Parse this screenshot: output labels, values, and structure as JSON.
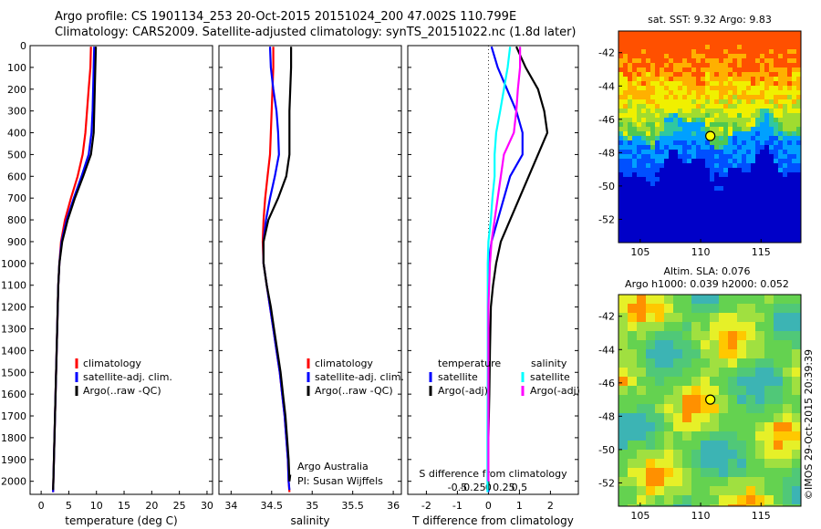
{
  "header": {
    "line1": "Argo profile: CS 1901134_253 20-Oct-2015 20151024_200 47.002S 110.799E",
    "line2": "Climatology: CARS2009. Satellite-adjusted climatology: synTS_20151022.nc (1.8d later)"
  },
  "stamp": "©IMOS 29-Oct-2015 20:39:39",
  "chart_data": [
    {
      "type": "line",
      "id": "temperature",
      "xlabel": "temperature (deg C)",
      "xlim": [
        -2,
        31
      ],
      "xticks": [
        "0",
        "5",
        "10",
        "15",
        "20",
        "25",
        "30"
      ],
      "xtick_values": [
        0,
        5,
        10,
        15,
        20,
        25,
        30
      ],
      "ylim": [
        0,
        2060
      ],
      "ytick_values": [
        0,
        100,
        200,
        300,
        400,
        500,
        600,
        700,
        800,
        900,
        1000,
        1100,
        1200,
        1300,
        1400,
        1500,
        1600,
        1700,
        1800,
        1900,
        2000
      ],
      "legend": [
        "climatology",
        "satellite-adj. clim.",
        "Argo(..raw -QC)"
      ],
      "series": [
        {
          "name": "climatology",
          "color": "#ff0000",
          "points": [
            [
              9.0,
              5
            ],
            [
              8.9,
              100
            ],
            [
              8.6,
              200
            ],
            [
              8.3,
              300
            ],
            [
              8.0,
              400
            ],
            [
              7.5,
              500
            ],
            [
              6.6,
              600
            ],
            [
              5.4,
              700
            ],
            [
              4.3,
              800
            ],
            [
              3.6,
              900
            ],
            [
              3.3,
              1000
            ],
            [
              3.1,
              1100
            ],
            [
              3.0,
              1200
            ],
            [
              2.9,
              1300
            ],
            [
              2.8,
              1400
            ],
            [
              2.7,
              1500
            ],
            [
              2.6,
              1600
            ],
            [
              2.5,
              1700
            ],
            [
              2.4,
              1800
            ],
            [
              2.3,
              1900
            ],
            [
              2.2,
              2000
            ],
            [
              2.15,
              2050
            ]
          ]
        },
        {
          "name": "satellite-adj. clim.",
          "color": "#0000ff",
          "points": [
            [
              9.6,
              5
            ],
            [
              9.5,
              100
            ],
            [
              9.4,
              200
            ],
            [
              9.3,
              300
            ],
            [
              9.1,
              400
            ],
            [
              8.6,
              500
            ],
            [
              7.3,
              600
            ],
            [
              5.9,
              700
            ],
            [
              4.6,
              800
            ],
            [
              3.7,
              900
            ],
            [
              3.3,
              1000
            ],
            [
              3.1,
              1100
            ],
            [
              3.0,
              1200
            ],
            [
              2.9,
              1300
            ],
            [
              2.8,
              1400
            ],
            [
              2.7,
              1500
            ],
            [
              2.6,
              1600
            ],
            [
              2.5,
              1700
            ],
            [
              2.4,
              1800
            ],
            [
              2.3,
              1900
            ],
            [
              2.2,
              2000
            ],
            [
              2.15,
              2050
            ]
          ]
        },
        {
          "name": "Argo(..raw -QC)",
          "color": "#000000",
          "points": [
            [
              9.9,
              5
            ],
            [
              9.8,
              100
            ],
            [
              9.7,
              200
            ],
            [
              9.6,
              300
            ],
            [
              9.5,
              400
            ],
            [
              9.0,
              500
            ],
            [
              7.6,
              600
            ],
            [
              6.1,
              700
            ],
            [
              4.8,
              800
            ],
            [
              3.8,
              900
            ],
            [
              3.3,
              1000
            ],
            [
              3.1,
              1100
            ],
            [
              3.0,
              1200
            ],
            [
              2.9,
              1300
            ],
            [
              2.8,
              1400
            ],
            [
              2.7,
              1500
            ],
            [
              2.6,
              1600
            ],
            [
              2.5,
              1700
            ],
            [
              2.4,
              1800
            ],
            [
              2.3,
              1900
            ],
            [
              2.2,
              2000
            ],
            [
              2.15,
              2040
            ]
          ]
        }
      ]
    },
    {
      "type": "line",
      "id": "salinity",
      "xlabel": "salinity",
      "xlim": [
        33.85,
        36.1
      ],
      "xticks": [
        "34",
        "34.5",
        "35",
        "35.5",
        "36"
      ],
      "xtick_values": [
        34,
        34.5,
        35,
        35.5,
        36
      ],
      "legend": [
        "climatology",
        "satellite-adj. clim.",
        "Argo(..raw -QC)"
      ],
      "annotations": [
        "Argo Australia",
        "PI: Susan Wijffels"
      ],
      "series": [
        {
          "name": "climatology",
          "color": "#ff0000",
          "points": [
            [
              34.52,
              5
            ],
            [
              34.52,
              100
            ],
            [
              34.51,
              200
            ],
            [
              34.5,
              300
            ],
            [
              34.49,
              400
            ],
            [
              34.48,
              500
            ],
            [
              34.45,
              600
            ],
            [
              34.42,
              700
            ],
            [
              34.4,
              800
            ],
            [
              34.39,
              900
            ],
            [
              34.4,
              1000
            ],
            [
              34.44,
              1100
            ],
            [
              34.48,
              1200
            ],
            [
              34.52,
              1300
            ],
            [
              34.56,
              1400
            ],
            [
              34.6,
              1500
            ],
            [
              34.63,
              1600
            ],
            [
              34.66,
              1700
            ],
            [
              34.68,
              1800
            ],
            [
              34.7,
              1900
            ],
            [
              34.71,
              2000
            ],
            [
              34.72,
              2050
            ]
          ]
        },
        {
          "name": "satellite-adj. clim.",
          "color": "#0000ff",
          "points": [
            [
              34.48,
              5
            ],
            [
              34.49,
              100
            ],
            [
              34.52,
              200
            ],
            [
              34.56,
              300
            ],
            [
              34.58,
              400
            ],
            [
              34.59,
              500
            ],
            [
              34.54,
              600
            ],
            [
              34.48,
              700
            ],
            [
              34.43,
              800
            ],
            [
              34.4,
              900
            ],
            [
              34.4,
              1000
            ],
            [
              34.44,
              1100
            ],
            [
              34.48,
              1200
            ],
            [
              34.52,
              1300
            ],
            [
              34.56,
              1400
            ],
            [
              34.6,
              1500
            ],
            [
              34.63,
              1600
            ],
            [
              34.66,
              1700
            ],
            [
              34.68,
              1800
            ],
            [
              34.7,
              1900
            ],
            [
              34.71,
              2000
            ],
            [
              34.72,
              2040
            ]
          ]
        },
        {
          "name": "Argo(..raw -QC)",
          "color": "#000000",
          "points": [
            [
              34.74,
              5
            ],
            [
              34.74,
              100
            ],
            [
              34.73,
              200
            ],
            [
              34.72,
              300
            ],
            [
              34.72,
              400
            ],
            [
              34.72,
              500
            ],
            [
              34.68,
              600
            ],
            [
              34.58,
              700
            ],
            [
              34.46,
              800
            ],
            [
              34.4,
              900
            ],
            [
              34.4,
              1000
            ],
            [
              34.44,
              1100
            ],
            [
              34.49,
              1200
            ],
            [
              34.53,
              1300
            ],
            [
              34.57,
              1400
            ],
            [
              34.61,
              1500
            ],
            [
              34.64,
              1600
            ],
            [
              34.67,
              1700
            ],
            [
              34.69,
              1800
            ],
            [
              34.71,
              1900
            ],
            [
              34.72,
              2000
            ],
            [
              34.73,
              1970
            ]
          ]
        }
      ]
    },
    {
      "type": "line",
      "id": "difference",
      "xlabel": "T difference from climatology",
      "xlim": [
        -2.6,
        2.9
      ],
      "xticks": [
        "-2",
        "-1",
        "0",
        "1",
        "2"
      ],
      "xtick_values": [
        -2,
        -1,
        0,
        1,
        2
      ],
      "top_xlabel": "S difference from climatology",
      "top_xticks": [
        "-0.5",
        "-0.25",
        "0",
        "0.25",
        "0.5"
      ],
      "top_xtick_values": [
        -0.5,
        -0.25,
        0,
        0.25,
        0.5
      ],
      "legend_left_title": "temperature",
      "legend_right_title": "salinity",
      "legend": [
        "satellite",
        "Argo(-adj)",
        "satellite",
        "Argo(-adj)"
      ],
      "series": [
        {
          "name": "satellite",
          "color": "#0000ff",
          "points": [
            [
              0.1,
              5
            ],
            [
              0.3,
              100
            ],
            [
              0.6,
              200
            ],
            [
              0.9,
              300
            ],
            [
              1.1,
              400
            ],
            [
              1.1,
              500
            ],
            [
              0.7,
              600
            ],
            [
              0.5,
              700
            ],
            [
              0.3,
              800
            ],
            [
              0.1,
              900
            ],
            [
              0.0,
              1000
            ],
            [
              0.0,
              1200
            ],
            [
              0.0,
              2050
            ]
          ]
        },
        {
          "name": "Argo(-adj)",
          "color": "#000000",
          "points": [
            [
              0.9,
              5
            ],
            [
              1.2,
              100
            ],
            [
              1.6,
              200
            ],
            [
              1.8,
              300
            ],
            [
              1.9,
              400
            ],
            [
              1.6,
              500
            ],
            [
              1.3,
              600
            ],
            [
              1.0,
              700
            ],
            [
              0.7,
              800
            ],
            [
              0.4,
              900
            ],
            [
              0.25,
              1000
            ],
            [
              0.15,
              1100
            ],
            [
              0.08,
              1200
            ],
            [
              0.05,
              1400
            ],
            [
              0.03,
              1600
            ],
            [
              0.0,
              1800
            ],
            [
              0.0,
              2040
            ]
          ]
        },
        {
          "name": "satellite",
          "color": "#00ffff",
          "points": [
            [
              0.7,
              5
            ],
            [
              0.62,
              100
            ],
            [
              0.5,
              200
            ],
            [
              0.38,
              300
            ],
            [
              0.25,
              400
            ],
            [
              0.2,
              500
            ],
            [
              0.2,
              600
            ],
            [
              0.13,
              700
            ],
            [
              0.08,
              800
            ],
            [
              0.0,
              900
            ],
            [
              -0.02,
              1000
            ],
            [
              -0.02,
              1200
            ],
            [
              -0.02,
              1500
            ],
            [
              -0.03,
              1800
            ],
            [
              -0.03,
              2050
            ]
          ]
        },
        {
          "name": "Argo(-adj)",
          "color": "#ff00ff",
          "points": [
            [
              1.02,
              5
            ],
            [
              1.02,
              100
            ],
            [
              0.95,
              200
            ],
            [
              0.9,
              300
            ],
            [
              0.82,
              400
            ],
            [
              0.5,
              500
            ],
            [
              0.4,
              600
            ],
            [
              0.3,
              700
            ],
            [
              0.2,
              800
            ],
            [
              0.1,
              900
            ],
            [
              0.05,
              1000
            ],
            [
              0.0,
              1200
            ],
            [
              0.0,
              2000
            ]
          ]
        }
      ]
    },
    {
      "type": "heatmap",
      "id": "sst-map",
      "title": "sat. SST: 9.32  Argo: 9.83",
      "xticks": [
        "105",
        "110",
        "115"
      ],
      "xtick_values": [
        105,
        110,
        115
      ],
      "yticks": [
        "-42",
        "-44",
        "-46",
        "-48",
        "-50",
        "-52"
      ],
      "ytick_values": [
        -42,
        -44,
        -46,
        -48,
        -50,
        -52
      ],
      "xlim": [
        103.2,
        118.3
      ],
      "ylim": [
        -53.4,
        -40.7
      ],
      "argo_position": [
        110.799,
        -47.002
      ]
    },
    {
      "type": "heatmap",
      "id": "sla-map",
      "title_line1": "Altim. SLA: 0.076",
      "title_line2": "Argo h1000: 0.039 h2000: 0.052",
      "xticks": [
        "105",
        "110",
        "115"
      ],
      "xtick_values": [
        105,
        110,
        115
      ],
      "yticks": [
        "-42",
        "-44",
        "-46",
        "-48",
        "-50",
        "-52"
      ],
      "ytick_values": [
        -42,
        -44,
        -46,
        -48,
        -50,
        -52
      ],
      "xlim": [
        103.2,
        118.3
      ],
      "ylim": [
        -53.4,
        -40.7
      ],
      "argo_position": [
        110.799,
        -47.002
      ]
    }
  ]
}
